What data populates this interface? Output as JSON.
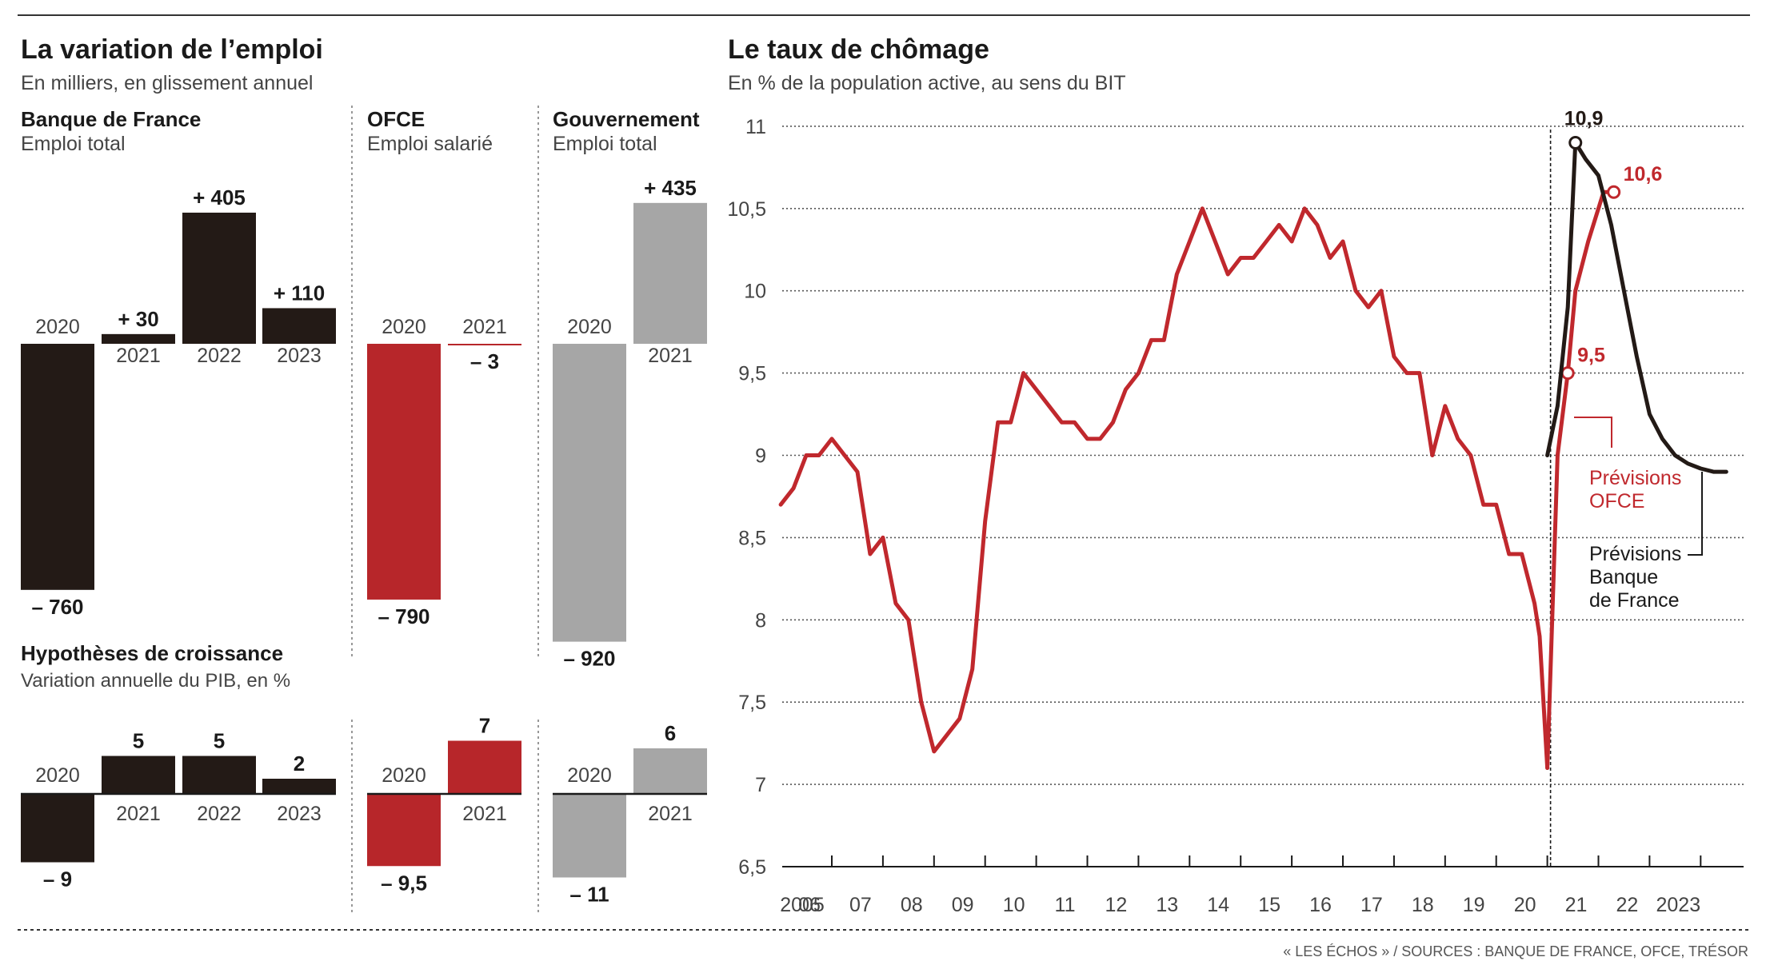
{
  "colors": {
    "dark": "#231a16",
    "red": "#b7262a",
    "gray": "#a6a6a6",
    "axis": "#555555",
    "line_red": "#c0282d"
  },
  "left": {
    "title": "La variation de l’emploi",
    "subtitle": "En milliers, en glissement annuel",
    "growth_title": "Hypothèses de croissance",
    "growth_subtitle": "Variation annuelle du PIB, en %"
  },
  "right": {
    "title": "Le taux de chômage",
    "subtitle": "En % de la population active, au sens du BIT",
    "note_ofce": [
      "Prévisions",
      "OFCE"
    ],
    "note_bdf": [
      "Prévisions",
      "Banque",
      "de France"
    ]
  },
  "source": "« LES ÉCHOS » / SOURCES : BANQUE DE FRANCE, OFCE, TRÉSOR",
  "chart_data": [
    {
      "type": "bar",
      "title": "La variation de l’emploi",
      "subtitle": "En milliers, en glissement annuel",
      "panels": [
        {
          "name": "Banque de France",
          "subname": "Emploi total",
          "color": "#231a16",
          "categories": [
            "2020",
            "2021",
            "2022",
            "2023"
          ],
          "values": [
            -760,
            30,
            405,
            110
          ],
          "labels": [
            "– 760",
            "+ 30",
            "+ 405",
            "+ 110"
          ]
        },
        {
          "name": "OFCE",
          "subname": "Emploi salarié",
          "color": "#b7262a",
          "categories": [
            "2020",
            "2021"
          ],
          "values": [
            -790,
            -3
          ],
          "labels": [
            "– 790",
            "– 3"
          ]
        },
        {
          "name": "Gouvernement",
          "subname": "Emploi total",
          "color": "#a6a6a6",
          "categories": [
            "2020",
            "2021"
          ],
          "values": [
            -920,
            435
          ],
          "labels": [
            "– 920",
            "+ 435"
          ]
        }
      ]
    },
    {
      "type": "bar",
      "title": "Hypothèses de croissance",
      "subtitle": "Variation annuelle du PIB, en %",
      "panels": [
        {
          "color": "#231a16",
          "categories": [
            "2020",
            "2021",
            "2022",
            "2023"
          ],
          "values": [
            -9,
            5,
            5,
            2
          ],
          "labels": [
            "– 9",
            "5",
            "5",
            "2"
          ]
        },
        {
          "color": "#b7262a",
          "categories": [
            "2020",
            "2021"
          ],
          "values": [
            -9.5,
            7
          ],
          "labels": [
            "– 9,5",
            "7"
          ]
        },
        {
          "color": "#a6a6a6",
          "categories": [
            "2020",
            "2021"
          ],
          "values": [
            -11,
            6
          ],
          "labels": [
            "– 11",
            "6"
          ]
        }
      ]
    },
    {
      "type": "line",
      "title": "Le taux de chômage",
      "subtitle": "En % de la population active, au sens du BIT",
      "ylim": [
        6.5,
        11
      ],
      "xlim": [
        2005,
        2024
      ],
      "yticks": [
        6.5,
        7,
        7.5,
        8,
        8.5,
        9,
        9.5,
        10,
        10.5,
        11
      ],
      "ytick_labels": [
        "6,5",
        "7",
        "7,5",
        "8",
        "8,5",
        "9",
        "9,5",
        "10",
        "10,5",
        "11"
      ],
      "xticks": [
        2005,
        2006,
        2007,
        2008,
        2009,
        2010,
        2011,
        2012,
        2013,
        2014,
        2015,
        2016,
        2017,
        2018,
        2019,
        2020,
        2021,
        2022,
        2023
      ],
      "xtick_labels": [
        "2005",
        "06",
        "07",
        "08",
        "09",
        "10",
        "11",
        "12",
        "13",
        "14",
        "15",
        "16",
        "17",
        "18",
        "19",
        "20",
        "21",
        "22",
        "2023"
      ],
      "grid": true,
      "forecast_start": 2020.0,
      "series": [
        {
          "name": "historique",
          "color": "#c0282d",
          "x": [
            2005.0,
            2005.25,
            2005.5,
            2005.75,
            2006.0,
            2006.25,
            2006.5,
            2006.75,
            2007.0,
            2007.25,
            2007.5,
            2007.75,
            2008.0,
            2008.25,
            2008.5,
            2008.75,
            2009.0,
            2009.25,
            2009.5,
            2009.75,
            2010.0,
            2010.25,
            2010.5,
            2010.75,
            2011.0,
            2011.25,
            2011.5,
            2011.75,
            2012.0,
            2012.25,
            2012.5,
            2012.75,
            2013.0,
            2013.25,
            2013.5,
            2013.75,
            2014.0,
            2014.25,
            2014.5,
            2014.75,
            2015.0,
            2015.25,
            2015.5,
            2015.75,
            2016.0,
            2016.25,
            2016.5,
            2016.75,
            2017.0,
            2017.25,
            2017.5,
            2017.75,
            2018.0,
            2018.25,
            2018.5,
            2018.75,
            2019.0,
            2019.25,
            2019.5,
            2019.75,
            2019.85,
            2020.0
          ],
          "y": [
            8.7,
            8.8,
            9.0,
            9.0,
            9.1,
            9.0,
            8.9,
            8.4,
            8.5,
            8.1,
            8.0,
            7.5,
            7.2,
            7.3,
            7.4,
            7.7,
            8.6,
            9.2,
            9.2,
            9.5,
            9.4,
            9.3,
            9.2,
            9.2,
            9.1,
            9.1,
            9.2,
            9.4,
            9.5,
            9.7,
            9.7,
            10.1,
            10.3,
            10.5,
            10.3,
            10.1,
            10.2,
            10.2,
            10.3,
            10.4,
            10.3,
            10.5,
            10.4,
            10.2,
            10.3,
            10.0,
            9.9,
            10.0,
            9.6,
            9.5,
            9.5,
            9.0,
            9.3,
            9.1,
            9.0,
            8.7,
            8.7,
            8.4,
            8.4,
            8.1,
            7.9,
            7.1
          ]
        },
        {
          "name": "Prévisions OFCE",
          "color": "#c0282d",
          "x": [
            2020.0,
            2020.2,
            2020.4,
            2020.55,
            2020.8,
            2021.1,
            2021.3
          ],
          "y": [
            7.1,
            9.0,
            9.5,
            10.0,
            10.3,
            10.6,
            10.6
          ],
          "annotations": [
            {
              "x": 2020.4,
              "y": 9.5,
              "label": "9,5"
            },
            {
              "x": 2021.3,
              "y": 10.6,
              "label": "10,6"
            }
          ]
        },
        {
          "name": "Prévisions Banque de France",
          "color": "#231a16",
          "x": [
            2020.0,
            2020.2,
            2020.4,
            2020.55,
            2020.75,
            2021.0,
            2021.25,
            2021.5,
            2021.75,
            2022.0,
            2022.25,
            2022.5,
            2022.75,
            2023.0,
            2023.25,
            2023.5
          ],
          "y": [
            9.0,
            9.3,
            9.9,
            10.9,
            10.8,
            10.7,
            10.4,
            10.0,
            9.6,
            9.25,
            9.1,
            9.0,
            8.95,
            8.92,
            8.9,
            8.9
          ],
          "annotations": [
            {
              "x": 2020.55,
              "y": 10.9,
              "label": "10,9"
            }
          ]
        }
      ]
    }
  ]
}
